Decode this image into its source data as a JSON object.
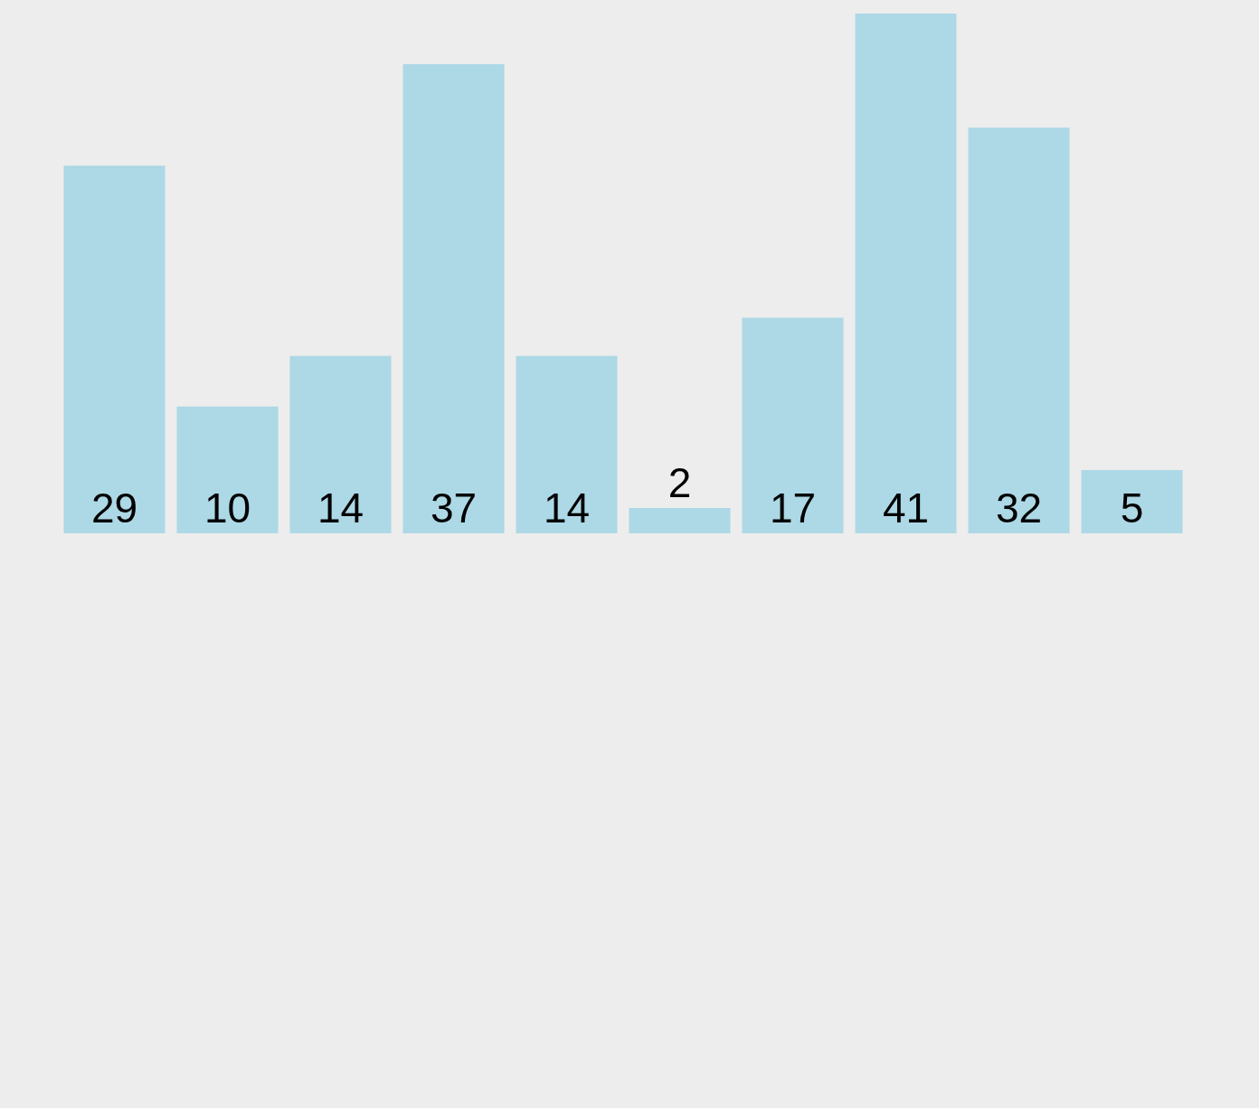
{
  "chart_data": {
    "type": "bar",
    "categories": [
      null,
      null,
      null,
      null,
      null,
      null,
      null,
      null,
      null,
      null
    ],
    "values": [
      29,
      10,
      14,
      37,
      14,
      2,
      17,
      41,
      32,
      5
    ],
    "color": "#add8e6",
    "data_labels": true
  }
}
